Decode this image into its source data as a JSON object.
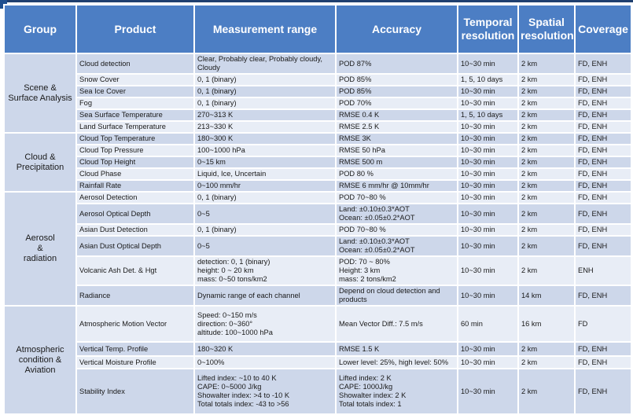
{
  "headers": {
    "group": "Group",
    "product": "Product",
    "range": "Measurement range",
    "accuracy": "Accuracy",
    "temporal": "Temporal resolution",
    "spatial": "Spatial resolution",
    "coverage": "Coverage"
  },
  "groups": {
    "scene": "Scene & Surface Analysis",
    "cloud": "Cloud & Precipitation",
    "aerosol": "Aerosol & radiation",
    "atmo": "Atmospheric condition & Aviation"
  },
  "rows": [
    {
      "product": "Cloud detection",
      "range": "Clear, Probably clear, Probably cloudy, Cloudy",
      "accuracy": "POD 87%",
      "temporal": "10~30 min",
      "spatial": "2 km",
      "coverage": "FD, ENH"
    },
    {
      "product": "Snow Cover",
      "range": "0, 1 (binary)",
      "accuracy": "POD 85%",
      "temporal": "1, 5, 10 days",
      "spatial": "2 km",
      "coverage": "FD, ENH"
    },
    {
      "product": "Sea Ice Cover",
      "range": "0, 1 (binary)",
      "accuracy": "POD 85%",
      "temporal": "10~30 min",
      "spatial": "2 km",
      "coverage": "FD, ENH"
    },
    {
      "product": "Fog",
      "range": "0, 1 (binary)",
      "accuracy": "POD 70%",
      "temporal": "10~30 min",
      "spatial": "2 km",
      "coverage": "FD, ENH"
    },
    {
      "product": "Sea Surface Temperature",
      "range": "270~313 K",
      "accuracy": "RMSE 0.4 K",
      "temporal": "1, 5, 10 days",
      "spatial": "2 km",
      "coverage": "FD, ENH"
    },
    {
      "product": "Land Surface Temperature",
      "range": "213~330 K",
      "accuracy": "RMSE 2.5 K",
      "temporal": "10~30 min",
      "spatial": "2 km",
      "coverage": "FD, ENH"
    },
    {
      "product": "Cloud Top Temperature",
      "range": "180~300 K",
      "accuracy": "RMSE 3K",
      "temporal": "10~30 min",
      "spatial": "2 km",
      "coverage": "FD, ENH"
    },
    {
      "product": "Cloud Top Pressure",
      "range": "100~1000 hPa",
      "accuracy": "RMSE 50 hPa",
      "temporal": "10~30 min",
      "spatial": "2 km",
      "coverage": "FD, ENH"
    },
    {
      "product": "Cloud Top Height",
      "range": "0~15 km",
      "accuracy": "RMSE 500 m",
      "temporal": "10~30 min",
      "spatial": "2 km",
      "coverage": "FD, ENH"
    },
    {
      "product": "Cloud Phase",
      "range": "Liquid, Ice, Uncertain",
      "accuracy": "POD 80 %",
      "temporal": "10~30 min",
      "spatial": "2 km",
      "coverage": "FD, ENH"
    },
    {
      "product": "Rainfall Rate",
      "range": "0~100 mm/hr",
      "accuracy": "RMSE 6 mm/hr @ 10mm/hr",
      "temporal": "10~30 min",
      "spatial": "2 km",
      "coverage": "FD, ENH"
    },
    {
      "product": "Aerosol Detection",
      "range": "0, 1 (binary)",
      "accuracy": "POD 70~80 %",
      "temporal": "10~30 min",
      "spatial": "2 km",
      "coverage": "FD, ENH"
    },
    {
      "product": "Aerosol Optical Depth",
      "range": "0~5",
      "accuracy1": "Land: ±0.10±0.3*AOT",
      "accuracy2": "Ocean: ±0.05±0.2*AOT",
      "temporal": "10~30 min",
      "spatial": "2 km",
      "coverage": "FD, ENH"
    },
    {
      "product": "Asian Dust Detection",
      "range": "0, 1 (binary)",
      "accuracy": "POD 70~80 %",
      "temporal": "10~30 min",
      "spatial": "2 km",
      "coverage": "FD, ENH"
    },
    {
      "product": "Asian Dust Optical Depth",
      "range": "0~5",
      "accuracy1": "Land: ±0.10±0.3*AOT",
      "accuracy2": "Ocean: ±0.05±0.2*AOT",
      "temporal": "10~30 min",
      "spatial": "2 km",
      "coverage": "FD, ENH"
    },
    {
      "product": "Volcanic Ash Det. & Hgt",
      "range1": "detection: 0, 1 (binary)",
      "range2": "height: 0 ~ 20 km",
      "range3": "mass: 0~50 tons/km2",
      "accuracy1": "POD: 70 ~ 80%",
      "accuracy2": "Height: 3 km",
      "accuracy3": "mass: 2 tons/km2",
      "temporal": "10~30 min",
      "spatial": "2 km",
      "coverage": "ENH"
    },
    {
      "product": "Radiance",
      "range": "Dynamic range of each channel",
      "accuracy1": "Depend on cloud detection and",
      "accuracy2": "products",
      "temporal": "10~30 min",
      "spatial": "14 km",
      "coverage": "FD, ENH"
    },
    {
      "product": "Atmospheric Motion Vector",
      "range1": "Speed: 0~150 m/s",
      "range2": "direction: 0~360°",
      "range3": "altitude: 100~1000 hPa",
      "accuracy": "Mean Vector Diff.: 7.5 m/s",
      "temporal": "60 min",
      "spatial": "16 km",
      "coverage": "FD"
    },
    {
      "product": "Vertical Temp. Profile",
      "range": "180~320 K",
      "accuracy": "RMSE 1.5 K",
      "temporal": "10~30 min",
      "spatial": "2 km",
      "coverage": "FD, ENH"
    },
    {
      "product": "Vertical Moisture Profile",
      "range": "0~100%",
      "accuracy": "Lower level: 25%, high level: 50%",
      "temporal": "10~30 min",
      "spatial": "2 km",
      "coverage": "FD, ENH"
    },
    {
      "product": "Stability Index",
      "range1": "Lifted index: ~10 to 40 K",
      "range2": "CAPE: 0~5000 J/kg",
      "range3": "Showalter index: >4 to -10 K",
      "range4": "Total totals index: -43 to >56",
      "accuracy1": "Lifted index: 2 K",
      "accuracy2": "CAPE: 1000J/kg",
      "accuracy3": "Showalter index: 2 K",
      "accuracy4": "Total totals index: 1",
      "temporal": "10~30 min",
      "spatial": "2 km",
      "coverage": "FD, ENH"
    }
  ]
}
